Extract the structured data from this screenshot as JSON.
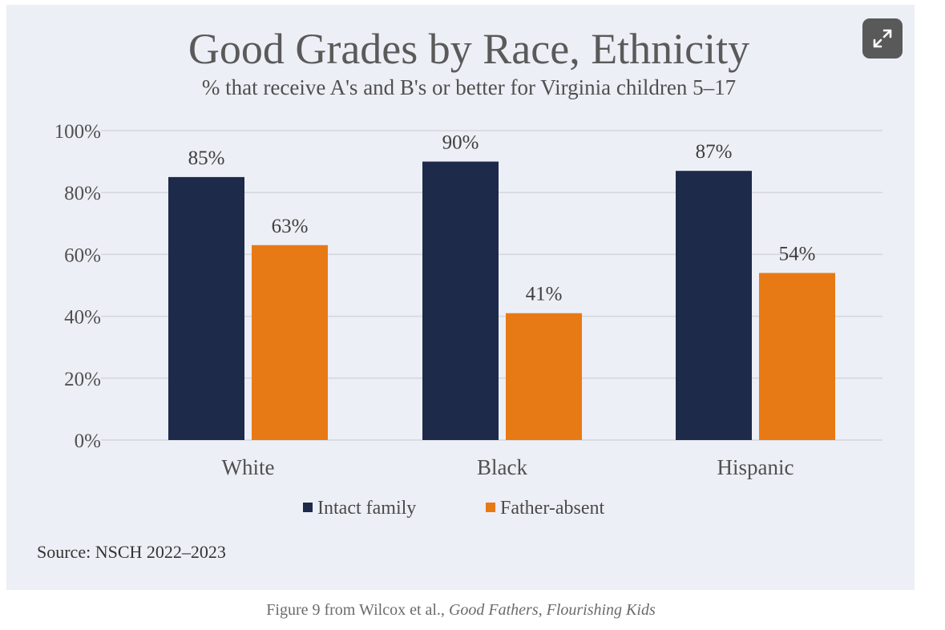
{
  "colors": {
    "intact": "#1d2a4a",
    "father_absent": "#e87a15",
    "gridline": "#d4d6dc"
  },
  "expand_icon": "expand-arrows-icon",
  "chart_data": {
    "type": "bar",
    "title": "Good Grades by Race, Ethnicity",
    "subtitle": "% that receive A's and B's or better for Virginia children 5–17",
    "categories": [
      "White",
      "Black",
      "Hispanic"
    ],
    "series": [
      {
        "name": "Intact family",
        "values": [
          85,
          90,
          87
        ]
      },
      {
        "name": "Father-absent",
        "values": [
          63,
          41,
          54
        ]
      }
    ],
    "value_labels": [
      [
        "85%",
        "90%",
        "87%"
      ],
      [
        "63%",
        "41%",
        "54%"
      ]
    ],
    "yticks": [
      0,
      20,
      40,
      60,
      80,
      100
    ],
    "ytick_labels": [
      "0%",
      "20%",
      "40%",
      "60%",
      "80%",
      "100%"
    ],
    "ylim": [
      0,
      100
    ],
    "xlabel": "",
    "ylabel": "",
    "grid": true,
    "legend_position": "bottom"
  },
  "source_note": "Source: NSCH 2022–2023",
  "caption": {
    "prefix": "Figure 9 from Wilcox et al., ",
    "title": "Good Fathers, Flourishing Kids"
  }
}
